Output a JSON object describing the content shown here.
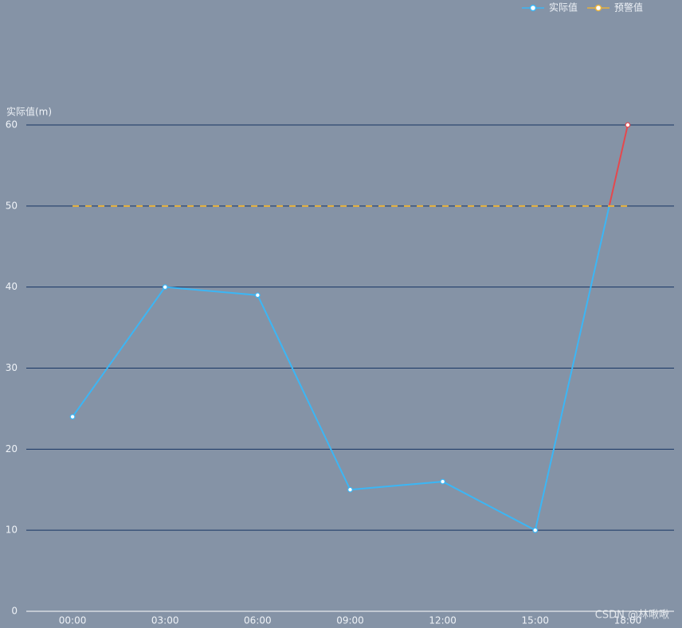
{
  "chart_data": {
    "type": "line",
    "y_axis_label": "实际值(m)",
    "categories": [
      "00:00",
      "03:00",
      "06:00",
      "09:00",
      "12:00",
      "15:00",
      "18:00"
    ],
    "series": [
      {
        "name": "实际值",
        "color": "#3bb6f5",
        "above_warning_color": "#e5484d",
        "values": [
          24,
          40,
          39,
          15,
          16,
          10,
          60
        ]
      },
      {
        "name": "预警值",
        "color": "#e8b23a",
        "dashed": true,
        "values": [
          50,
          50,
          50,
          50,
          50,
          50,
          50
        ]
      }
    ],
    "ylim": [
      0,
      60
    ],
    "yticks": [
      0,
      10,
      20,
      30,
      40,
      50,
      60
    ],
    "grid": true,
    "legend_position": "top-right",
    "watermark": "CSDN @林啾啾"
  }
}
